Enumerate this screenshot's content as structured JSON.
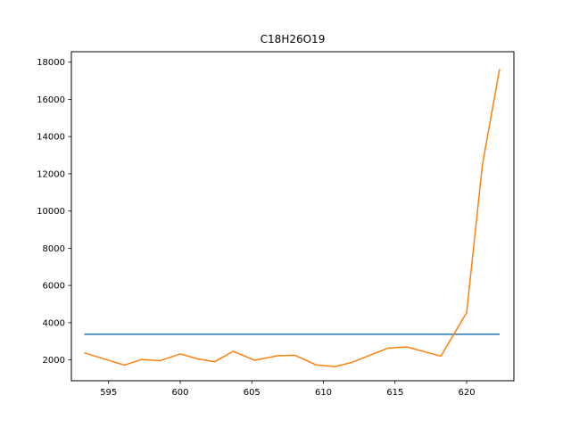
{
  "chart_data": {
    "type": "line",
    "title": "C18H26O19",
    "xlabel": "",
    "ylabel": "",
    "xlim": [
      592.4,
      623.3
    ],
    "ylim": [
      880,
      18560
    ],
    "xticks": [
      595,
      600,
      605,
      610,
      615,
      620
    ],
    "yticks": [
      2000,
      4000,
      6000,
      8000,
      10000,
      12000,
      14000,
      16000,
      18000
    ],
    "grid": false,
    "series": [
      {
        "color": "#1f77b4",
        "x": [
          593.3,
          622.3
        ],
        "y": [
          3380,
          3380
        ]
      },
      {
        "color": "#ff7f0e",
        "x": [
          593.3,
          596.1,
          597.3,
          598.6,
          600.0,
          601.2,
          602.4,
          603.7,
          605.2,
          606.8,
          608.0,
          609.5,
          610.8,
          612.0,
          614.5,
          615.8,
          618.2,
          620.0,
          621.1,
          622.3
        ],
        "y": [
          2380,
          1720,
          2020,
          1960,
          2320,
          2060,
          1900,
          2460,
          1980,
          2220,
          2250,
          1730,
          1640,
          1870,
          2630,
          2700,
          2200,
          4540,
          12480,
          17630
        ]
      }
    ]
  }
}
